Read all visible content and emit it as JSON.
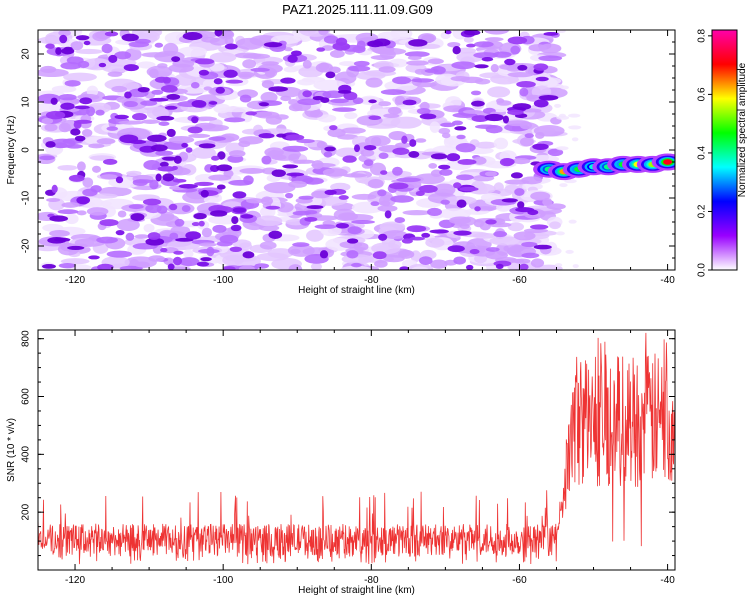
{
  "title": "PAZ1.2025.111.11.09.G09",
  "chart_data": [
    {
      "type": "heatmap",
      "xlabel": "Height of straight line (km)",
      "ylabel": "Frequency (Hz)",
      "xlim": [
        -125,
        -39
      ],
      "ylim": [
        -25,
        25
      ],
      "x_ticks": [
        -120,
        -100,
        -80,
        -60,
        -40
      ],
      "y_ticks": [
        -20,
        -10,
        0,
        10,
        20
      ],
      "noise_region": {
        "x": [
          -124,
          -55
        ],
        "y": [
          -25,
          25
        ]
      },
      "signal_track": [
        {
          "x": -56,
          "y": -4,
          "amplitude": 0.35
        },
        {
          "x": -54,
          "y": -4.5,
          "amplitude": 0.6
        },
        {
          "x": -52,
          "y": -4,
          "amplitude": 0.4
        },
        {
          "x": -50,
          "y": -3.5,
          "amplitude": 0.3
        },
        {
          "x": -48,
          "y": -3.5,
          "amplitude": 0.35
        },
        {
          "x": -46,
          "y": -3,
          "amplitude": 0.4
        },
        {
          "x": -44,
          "y": -3,
          "amplitude": 0.55
        },
        {
          "x": -42,
          "y": -3,
          "amplitude": 0.5
        },
        {
          "x": -40,
          "y": -2.5,
          "amplitude": 0.7
        }
      ],
      "colorbar": {
        "label": "Normalized spectral amplitude",
        "range": [
          0,
          0.82
        ],
        "ticks": [
          0.0,
          0.2,
          0.4,
          0.6,
          0.8
        ],
        "colors": [
          "#ffffff",
          "#9900ff",
          "#0000ff",
          "#00ffff",
          "#00ff00",
          "#ffff00",
          "#ff0000",
          "#ff00aa"
        ]
      }
    },
    {
      "type": "line",
      "xlabel": "Height of straight line (km)",
      "ylabel": "SNR (10 * v/v)",
      "xlim": [
        -125,
        -39
      ],
      "ylim": [
        0,
        830
      ],
      "x_ticks": [
        -120,
        -100,
        -80,
        -60,
        -40
      ],
      "y_ticks": [
        200,
        400,
        600,
        800
      ],
      "color": "#ee3333",
      "segments": [
        {
          "x_range": [
            -125,
            -55
          ],
          "mean": 105,
          "spread": 55,
          "max": 290
        },
        {
          "x_range": [
            -55,
            -39
          ],
          "mean": 520,
          "spread": 180,
          "max": 830
        }
      ]
    }
  ]
}
